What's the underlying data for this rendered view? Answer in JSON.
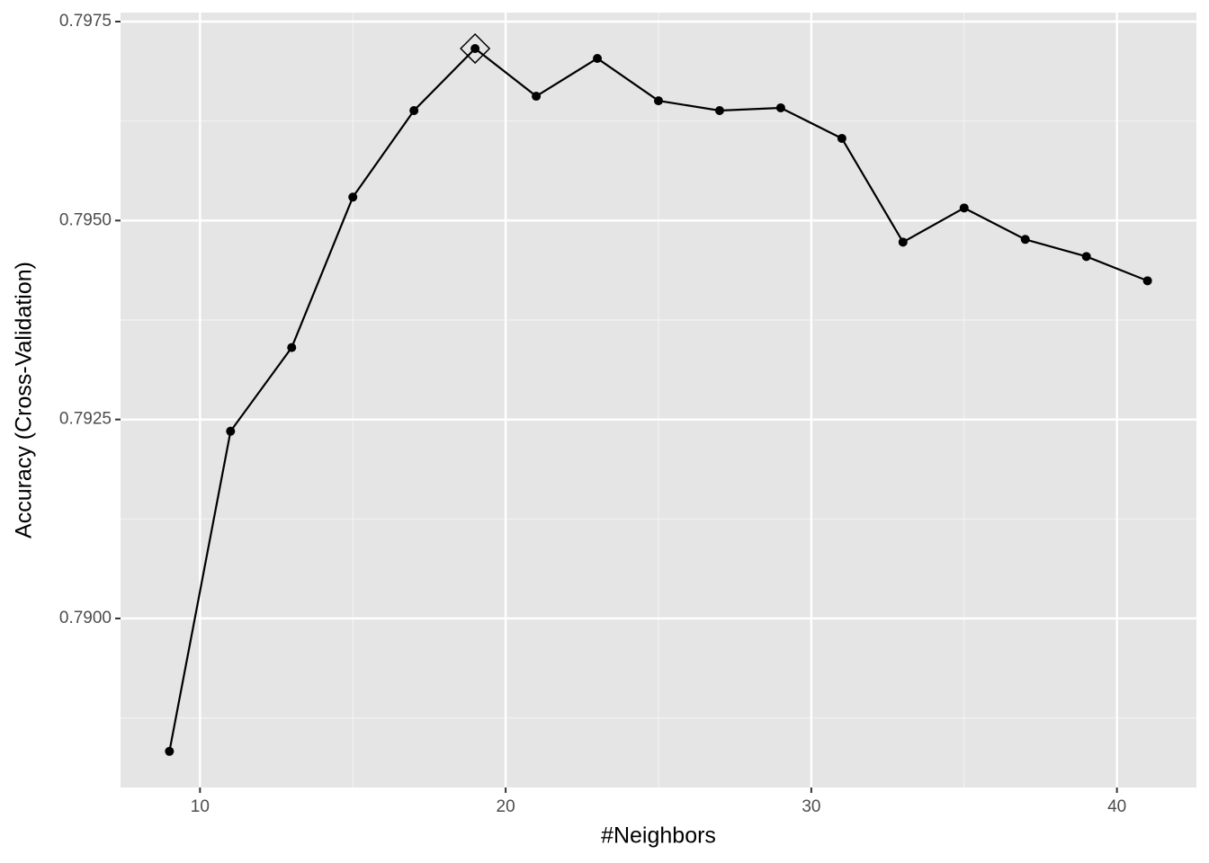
{
  "chart_data": {
    "type": "line",
    "x_label": "#Neighbors",
    "y_label": "Accuracy (Cross-Validation)",
    "x": [
      9,
      11,
      13,
      15,
      17,
      19,
      21,
      23,
      25,
      27,
      29,
      31,
      33,
      35,
      37,
      39,
      41
    ],
    "series": [
      {
        "color": "#000000",
        "values": [
          0.78833,
          0.792353,
          0.793404,
          0.795294,
          0.796382,
          0.797161,
          0.796562,
          0.797037,
          0.796505,
          0.796382,
          0.796416,
          0.796032,
          0.794729,
          0.795158,
          0.794763,
          0.794548,
          0.794243
        ]
      }
    ],
    "highlight_index": 5,
    "xlim": [
      7.4,
      42.6
    ],
    "ylim": [
      0.787876,
      0.797613
    ],
    "xticks": [
      10,
      20,
      30,
      40
    ],
    "yticks": [
      {
        "value": 0.79,
        "label": "0.7900"
      },
      0.7925,
      {
        "value": 0.795,
        "label": "0.7950"
      },
      0.7975
    ],
    "x_minor_ticks": [
      15,
      25,
      35
    ],
    "y_minor_ticks": [
      0.78875,
      0.79125,
      0.79375,
      0.79625
    ],
    "grid": true
  }
}
